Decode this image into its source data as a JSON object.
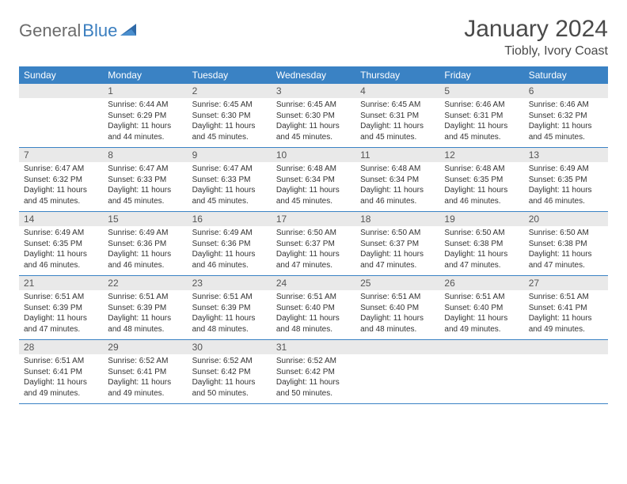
{
  "logo": {
    "word1": "General",
    "word2": "Blue"
  },
  "title": "January 2024",
  "location": "Tiobly, Ivory Coast",
  "colors": {
    "header_bg": "#3a82c4",
    "header_text": "#ffffff",
    "daynum_bg": "#e9e9e9",
    "border": "#3a82c4",
    "logo_gray": "#6b6b6b",
    "logo_blue": "#3a7ebf"
  },
  "weekdays": [
    "Sunday",
    "Monday",
    "Tuesday",
    "Wednesday",
    "Thursday",
    "Friday",
    "Saturday"
  ],
  "weeks": [
    [
      null,
      {
        "n": "1",
        "sr": "6:44 AM",
        "ss": "6:29 PM",
        "dl": "11 hours and 44 minutes."
      },
      {
        "n": "2",
        "sr": "6:45 AM",
        "ss": "6:30 PM",
        "dl": "11 hours and 45 minutes."
      },
      {
        "n": "3",
        "sr": "6:45 AM",
        "ss": "6:30 PM",
        "dl": "11 hours and 45 minutes."
      },
      {
        "n": "4",
        "sr": "6:45 AM",
        "ss": "6:31 PM",
        "dl": "11 hours and 45 minutes."
      },
      {
        "n": "5",
        "sr": "6:46 AM",
        "ss": "6:31 PM",
        "dl": "11 hours and 45 minutes."
      },
      {
        "n": "6",
        "sr": "6:46 AM",
        "ss": "6:32 PM",
        "dl": "11 hours and 45 minutes."
      }
    ],
    [
      {
        "n": "7",
        "sr": "6:47 AM",
        "ss": "6:32 PM",
        "dl": "11 hours and 45 minutes."
      },
      {
        "n": "8",
        "sr": "6:47 AM",
        "ss": "6:33 PM",
        "dl": "11 hours and 45 minutes."
      },
      {
        "n": "9",
        "sr": "6:47 AM",
        "ss": "6:33 PM",
        "dl": "11 hours and 45 minutes."
      },
      {
        "n": "10",
        "sr": "6:48 AM",
        "ss": "6:34 PM",
        "dl": "11 hours and 45 minutes."
      },
      {
        "n": "11",
        "sr": "6:48 AM",
        "ss": "6:34 PM",
        "dl": "11 hours and 46 minutes."
      },
      {
        "n": "12",
        "sr": "6:48 AM",
        "ss": "6:35 PM",
        "dl": "11 hours and 46 minutes."
      },
      {
        "n": "13",
        "sr": "6:49 AM",
        "ss": "6:35 PM",
        "dl": "11 hours and 46 minutes."
      }
    ],
    [
      {
        "n": "14",
        "sr": "6:49 AM",
        "ss": "6:35 PM",
        "dl": "11 hours and 46 minutes."
      },
      {
        "n": "15",
        "sr": "6:49 AM",
        "ss": "6:36 PM",
        "dl": "11 hours and 46 minutes."
      },
      {
        "n": "16",
        "sr": "6:49 AM",
        "ss": "6:36 PM",
        "dl": "11 hours and 46 minutes."
      },
      {
        "n": "17",
        "sr": "6:50 AM",
        "ss": "6:37 PM",
        "dl": "11 hours and 47 minutes."
      },
      {
        "n": "18",
        "sr": "6:50 AM",
        "ss": "6:37 PM",
        "dl": "11 hours and 47 minutes."
      },
      {
        "n": "19",
        "sr": "6:50 AM",
        "ss": "6:38 PM",
        "dl": "11 hours and 47 minutes."
      },
      {
        "n": "20",
        "sr": "6:50 AM",
        "ss": "6:38 PM",
        "dl": "11 hours and 47 minutes."
      }
    ],
    [
      {
        "n": "21",
        "sr": "6:51 AM",
        "ss": "6:39 PM",
        "dl": "11 hours and 47 minutes."
      },
      {
        "n": "22",
        "sr": "6:51 AM",
        "ss": "6:39 PM",
        "dl": "11 hours and 48 minutes."
      },
      {
        "n": "23",
        "sr": "6:51 AM",
        "ss": "6:39 PM",
        "dl": "11 hours and 48 minutes."
      },
      {
        "n": "24",
        "sr": "6:51 AM",
        "ss": "6:40 PM",
        "dl": "11 hours and 48 minutes."
      },
      {
        "n": "25",
        "sr": "6:51 AM",
        "ss": "6:40 PM",
        "dl": "11 hours and 48 minutes."
      },
      {
        "n": "26",
        "sr": "6:51 AM",
        "ss": "6:40 PM",
        "dl": "11 hours and 49 minutes."
      },
      {
        "n": "27",
        "sr": "6:51 AM",
        "ss": "6:41 PM",
        "dl": "11 hours and 49 minutes."
      }
    ],
    [
      {
        "n": "28",
        "sr": "6:51 AM",
        "ss": "6:41 PM",
        "dl": "11 hours and 49 minutes."
      },
      {
        "n": "29",
        "sr": "6:52 AM",
        "ss": "6:41 PM",
        "dl": "11 hours and 49 minutes."
      },
      {
        "n": "30",
        "sr": "6:52 AM",
        "ss": "6:42 PM",
        "dl": "11 hours and 50 minutes."
      },
      {
        "n": "31",
        "sr": "6:52 AM",
        "ss": "6:42 PM",
        "dl": "11 hours and 50 minutes."
      },
      null,
      null,
      null
    ]
  ],
  "labels": {
    "sunrise": "Sunrise:",
    "sunset": "Sunset:",
    "daylight": "Daylight:"
  }
}
